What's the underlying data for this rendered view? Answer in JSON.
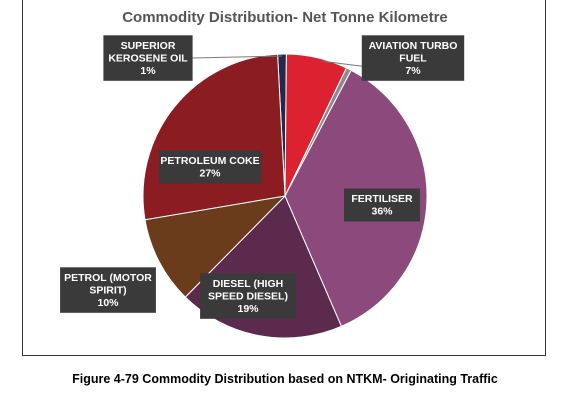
{
  "chart_data": {
    "type": "pie",
    "title": "Commodity Distribution- Net Tonne Kilometre",
    "slices": [
      {
        "name": "SUPERIOR KEROSENE OIL",
        "value": 1,
        "label_lines": [
          "SUPERIOR",
          "KEROSENE OIL",
          "1%"
        ],
        "color": "#24284a"
      },
      {
        "name": "AVIATION TURBO FUEL",
        "value": 7,
        "label_lines": [
          "AVIATION TURBO",
          "FUEL",
          "7%"
        ],
        "color": "#dc2230"
      },
      {
        "name": "GAP",
        "value": 0.6,
        "label_lines": [],
        "color": "#8c8c8c"
      },
      {
        "name": "FERTILISER",
        "value": 36,
        "label_lines": [
          "FERTILISER",
          "36%"
        ],
        "color": "#8c4a7c"
      },
      {
        "name": "DIESEL (HIGH SPEED DIESEL)",
        "value": 19,
        "label_lines": [
          "DIESEL (HIGH",
          "SPEED DIESEL)",
          "19%"
        ],
        "color": "#5c2a4c"
      },
      {
        "name": "PETROL (MOTOR SPIRIT)",
        "value": 10,
        "label_lines": [
          "PETROL (MOTOR",
          "SPIRIT)",
          "10%"
        ],
        "color": "#6a3c1c"
      },
      {
        "name": "PETROLEUM COKE",
        "value": 27,
        "label_lines": [
          "PETROLEUM COKE",
          "27%"
        ],
        "color": "#8a1c22"
      }
    ]
  },
  "caption": "Figure 4-79 Commodity Distribution based on NTKM- Originating Traffic"
}
